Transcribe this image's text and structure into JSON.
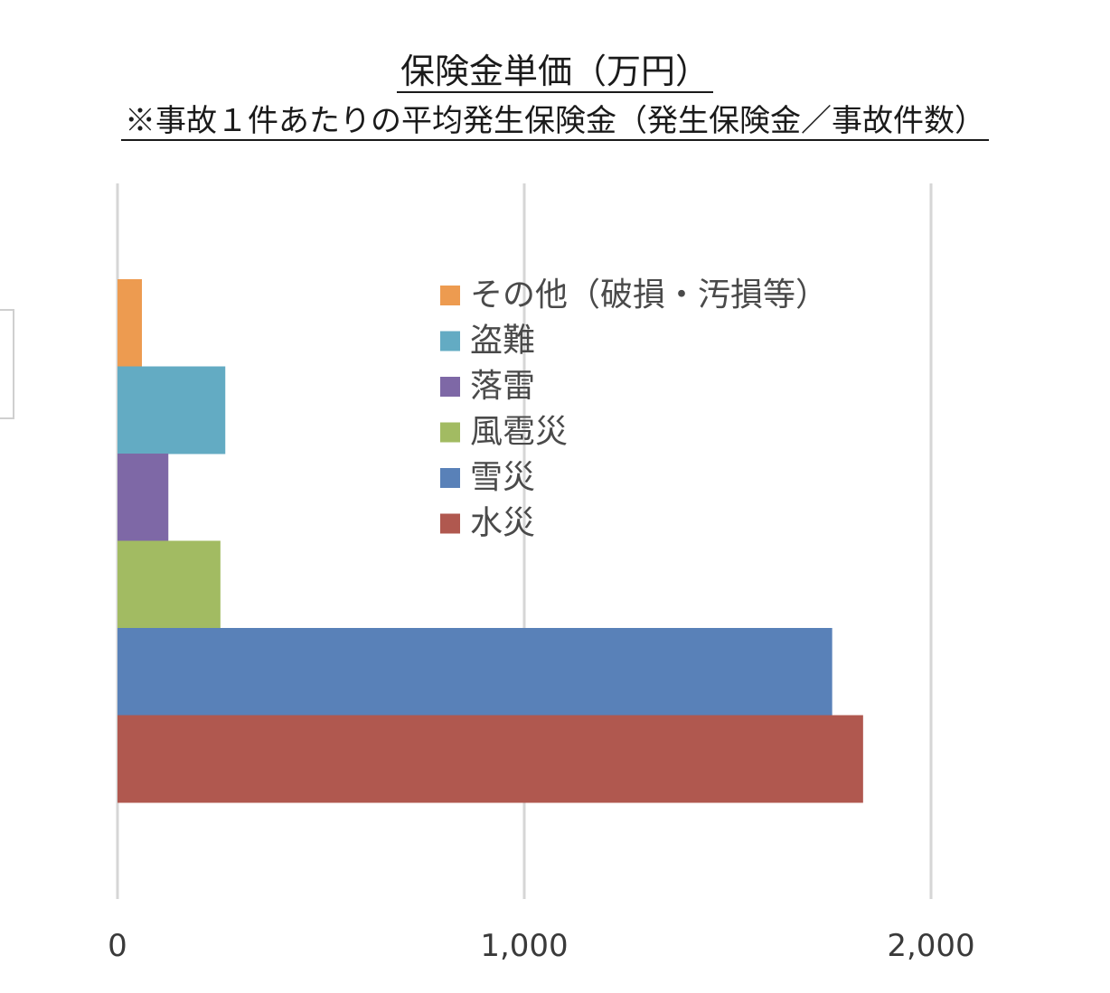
{
  "chart_data": {
    "type": "bar",
    "orientation": "horizontal",
    "title": "保険金単価（万円）",
    "subtitle": "※事故１件あたりの平均発生保険金（発生保険金／事故件数）",
    "categories": [
      "その他（破損・汚損等）",
      "盗難",
      "落雷",
      "風雹災",
      "雪災",
      "水災"
    ],
    "values": [
      60,
      265,
      125,
      253,
      1757,
      1833
    ],
    "colors": [
      "#ED9B50",
      "#63ABC3",
      "#7E68A6",
      "#A2BB62",
      "#5981B8",
      "#B0584F"
    ],
    "xlim": [
      0,
      2000
    ],
    "xticks": [
      0,
      1000,
      2000
    ],
    "xtick_labels": [
      "0",
      "1,000",
      "2,000"
    ],
    "grid": "vertical",
    "legend_position": "top-center",
    "legend": [
      "その他（破損・汚損等）",
      "盗難",
      "落雷",
      "風雹災",
      "雪災",
      "水災"
    ]
  }
}
